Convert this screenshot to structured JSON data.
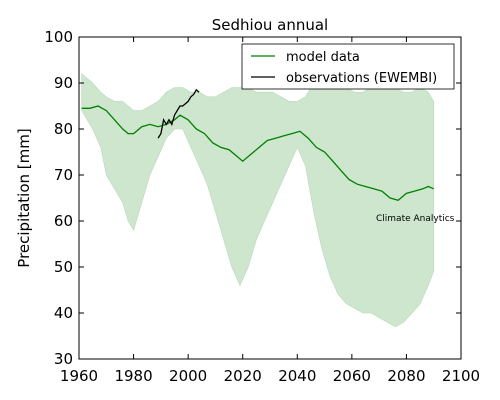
{
  "chart_data": {
    "type": "line",
    "title": "Sedhiou annual",
    "xlabel": "",
    "ylabel": "Precipitation [mm]",
    "xlim": [
      1960,
      2100
    ],
    "ylim": [
      30,
      100
    ],
    "xticks": [
      1960,
      1980,
      2000,
      2020,
      2040,
      2060,
      2080,
      2100
    ],
    "yticks": [
      30,
      40,
      50,
      60,
      70,
      80,
      90,
      100
    ],
    "grid": false,
    "legend_position": "top-right",
    "annotation": "Climate Analytics",
    "band": {
      "x": [
        1961,
        1965,
        1968,
        1970,
        1973,
        1976,
        1978,
        1980,
        1983,
        1986,
        1989,
        1992,
        1995,
        1998,
        2001,
        2004,
        2007,
        2010,
        2013,
        2016,
        2019,
        2022,
        2025,
        2028,
        2031,
        2034,
        2037,
        2040,
        2043,
        2046,
        2049,
        2052,
        2055,
        2058,
        2061,
        2064,
        2067,
        2070,
        2073,
        2076,
        2079,
        2082,
        2085,
        2088,
        2090
      ],
      "lower": [
        84,
        80,
        76,
        70,
        67,
        64,
        60,
        58,
        64,
        70,
        74,
        78,
        80,
        80,
        76,
        72,
        68,
        62,
        56,
        50,
        46,
        50,
        56,
        60,
        64,
        68,
        72,
        76,
        72,
        62,
        54,
        48,
        44,
        42,
        41,
        40,
        40,
        39,
        38,
        37,
        38,
        40,
        42,
        46,
        49
      ],
      "upper": [
        92,
        90,
        88,
        87,
        86,
        86,
        85,
        84,
        84,
        85,
        86,
        88,
        89,
        89,
        88,
        88,
        87,
        87,
        88,
        89,
        89,
        89,
        88,
        88,
        88,
        87,
        86,
        86,
        87,
        90,
        91,
        90,
        90,
        89,
        88,
        88,
        89,
        89,
        90,
        89,
        88,
        88,
        89,
        88,
        86
      ]
    },
    "series": [
      {
        "name": "model data",
        "color": "#008000",
        "x": [
          1961,
          1964,
          1967,
          1970,
          1973,
          1976,
          1978,
          1980,
          1983,
          1986,
          1989,
          1992,
          1995,
          1997,
          2000,
          2003,
          2006,
          2009,
          2012,
          2015,
          2018,
          2020,
          2023,
          2026,
          2029,
          2032,
          2035,
          2038,
          2041,
          2044,
          2047,
          2050,
          2053,
          2056,
          2059,
          2062,
          2065,
          2068,
          2071,
          2074,
          2077,
          2080,
          2083,
          2086,
          2088,
          2090
        ],
        "y": [
          84.5,
          84.5,
          85,
          84,
          82,
          80,
          79,
          79,
          80.5,
          81,
          80.5,
          81,
          82,
          83,
          82,
          80,
          79,
          77,
          76,
          75.5,
          74,
          73,
          74.5,
          76,
          77.5,
          78,
          78.5,
          79,
          79.5,
          78,
          76,
          75,
          73,
          71,
          69,
          68,
          67.5,
          67,
          66.5,
          65,
          64.5,
          66,
          66.5,
          67,
          67.5,
          67
        ]
      },
      {
        "name": "observations (EWEMBI)",
        "color": "#000000",
        "x": [
          1989,
          1990,
          1991,
          1992,
          1993,
          1994,
          1995,
          1996,
          1997,
          1998,
          1999,
          2000,
          2001,
          2002,
          2003,
          2004
        ],
        "y": [
          78,
          79,
          82,
          81,
          82,
          81,
          83,
          84,
          85,
          85,
          85.5,
          86,
          87,
          87.5,
          88.5,
          88
        ]
      }
    ]
  }
}
